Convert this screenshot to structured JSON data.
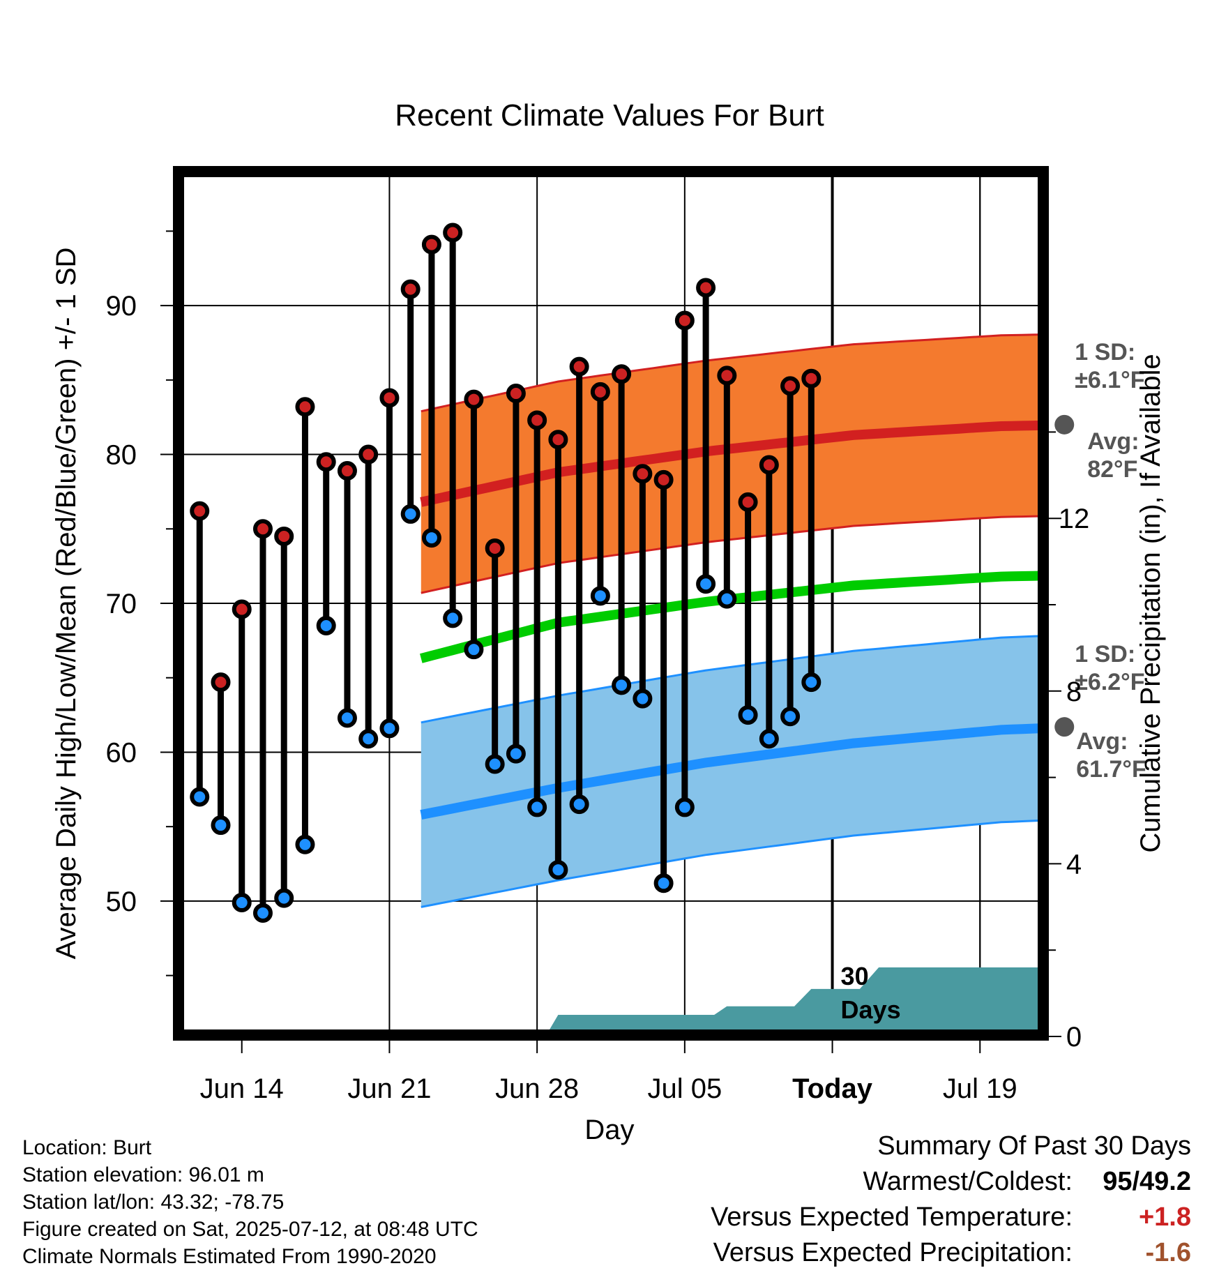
{
  "chart_data": {
    "type": "line",
    "title": "Recent Climate Values For Burt",
    "xlabel": "Day",
    "ylabel": "Average Daily High/Low/Mean (Red/Blue/Green) +/- 1 SD",
    "y2label": "Cumulative Precipitation (in), If Available",
    "ylim": [
      41,
      99
    ],
    "y2lim": [
      0,
      20
    ],
    "x_tick_labels": [
      "Jun 14",
      "Jun 21",
      "Jun 28",
      "Jul 05",
      "Today",
      "Jul 19"
    ],
    "y_ticks": [
      50,
      60,
      70,
      80,
      90
    ],
    "y2_ticks": [
      0,
      4,
      8,
      12
    ],
    "start_date": "2025-06-11",
    "end_date": "2025-07-22",
    "today_date": "2025-07-12",
    "days": [
      "2025-06-12",
      "2025-06-13",
      "2025-06-14",
      "2025-06-15",
      "2025-06-16",
      "2025-06-17",
      "2025-06-18",
      "2025-06-19",
      "2025-06-20",
      "2025-06-21",
      "2025-06-22",
      "2025-06-23",
      "2025-06-24",
      "2025-06-25",
      "2025-06-26",
      "2025-06-27",
      "2025-06-28",
      "2025-06-29",
      "2025-06-30",
      "2025-07-01",
      "2025-07-02",
      "2025-07-03",
      "2025-07-04",
      "2025-07-05",
      "2025-07-06",
      "2025-07-07",
      "2025-07-08",
      "2025-07-09",
      "2025-07-10",
      "2025-07-11"
    ],
    "series": [
      {
        "name": "High",
        "color": "#cc2222",
        "values": [
          76.2,
          64.7,
          69.6,
          75.0,
          74.5,
          83.2,
          79.5,
          78.9,
          80.0,
          83.8,
          91.1,
          94.1,
          94.9,
          83.7,
          73.7,
          84.1,
          82.3,
          81.0,
          85.9,
          84.2,
          85.4,
          78.7,
          78.3,
          89.0,
          91.2,
          85.3,
          76.8,
          79.3,
          84.6,
          85.1
        ]
      },
      {
        "name": "Low",
        "color": "#1e90ff",
        "values": [
          57.0,
          55.1,
          49.9,
          49.2,
          50.2,
          53.8,
          68.5,
          62.3,
          60.9,
          61.6,
          76.0,
          74.4,
          69.0,
          66.9,
          59.2,
          59.9,
          56.3,
          52.1,
          56.5,
          70.5,
          64.5,
          63.6,
          51.2,
          56.3,
          71.3,
          70.3,
          62.5,
          60.9,
          62.4,
          64.7
        ]
      },
      {
        "name": "Normal High",
        "color": "#d22020",
        "values": [
          [
            11.5,
            76.8
          ],
          [
            18,
            78.8
          ],
          [
            25,
            80.2
          ],
          [
            32,
            81.3
          ],
          [
            39,
            81.9
          ],
          [
            46,
            82.1
          ],
          [
            52.5,
            82.1
          ]
        ],
        "sd": 6.1
      },
      {
        "name": "Normal Low",
        "color": "#1e90ff",
        "values": [
          [
            11.5,
            55.8
          ],
          [
            18,
            57.6
          ],
          [
            25,
            59.3
          ],
          [
            32,
            60.6
          ],
          [
            39,
            61.5
          ],
          [
            46,
            61.9
          ],
          [
            52.5,
            62.0
          ]
        ],
        "sd": 6.2
      },
      {
        "name": "Normal Mean",
        "color": "#00cc00",
        "values": [
          [
            11.5,
            66.3
          ],
          [
            18,
            68.7
          ],
          [
            25,
            70.1
          ],
          [
            32,
            71.2
          ],
          [
            39,
            71.8
          ],
          [
            46,
            72.0
          ],
          [
            52.5,
            72.0
          ]
        ]
      },
      {
        "name": "Cumulative Precipitation",
        "color": "#4a9aa0",
        "values": [
          [
            11.5,
            0
          ],
          [
            17.4,
            0
          ],
          [
            18,
            0.5
          ],
          [
            25.4,
            0.5
          ],
          [
            26,
            0.7
          ],
          [
            29.2,
            0.7
          ],
          [
            30,
            1.1
          ],
          [
            32.3,
            1.1
          ],
          [
            33.2,
            1.6
          ],
          [
            52.5,
            1.6
          ]
        ]
      }
    ],
    "annotations": {
      "high_sd_label": "1 SD:",
      "high_sd_value": "±6.1°F",
      "high_avg_label": "Avg:",
      "high_avg_value": "82°F",
      "high_avg_marker": [
        42,
        82.0
      ],
      "low_sd_label": "1 SD:",
      "low_sd_value": "±6.2°F",
      "low_avg_label": "Avg:",
      "low_avg_value": "61.7°F",
      "low_avg_marker": [
        42,
        61.7
      ],
      "precip_label_1": "30",
      "precip_label_2": "Days"
    },
    "grid": true
  },
  "meta": {
    "location": "Location: Burt",
    "elevation": "Station elevation: 96.01 m",
    "latlon": "Station lat/lon: 43.32; -78.75",
    "created": "Figure created on Sat, 2025-07-12, at 08:48 UTC",
    "normals": "Climate Normals Estimated From 1990-2020"
  },
  "summary": {
    "title": "Summary Of Past 30 Days",
    "warm_cold_label": "Warmest/Coldest:",
    "warm_cold_value_warm": "95",
    "warm_cold_value_sep": "/",
    "warm_cold_value_cold": "49.2",
    "temp_label": "Versus Expected Temperature:",
    "temp_value": "+1.8",
    "temp_color": "#cc2222",
    "precip_label": "Versus Expected Precipitation:",
    "precip_value": "-1.6",
    "precip_color": "#a0522d"
  }
}
